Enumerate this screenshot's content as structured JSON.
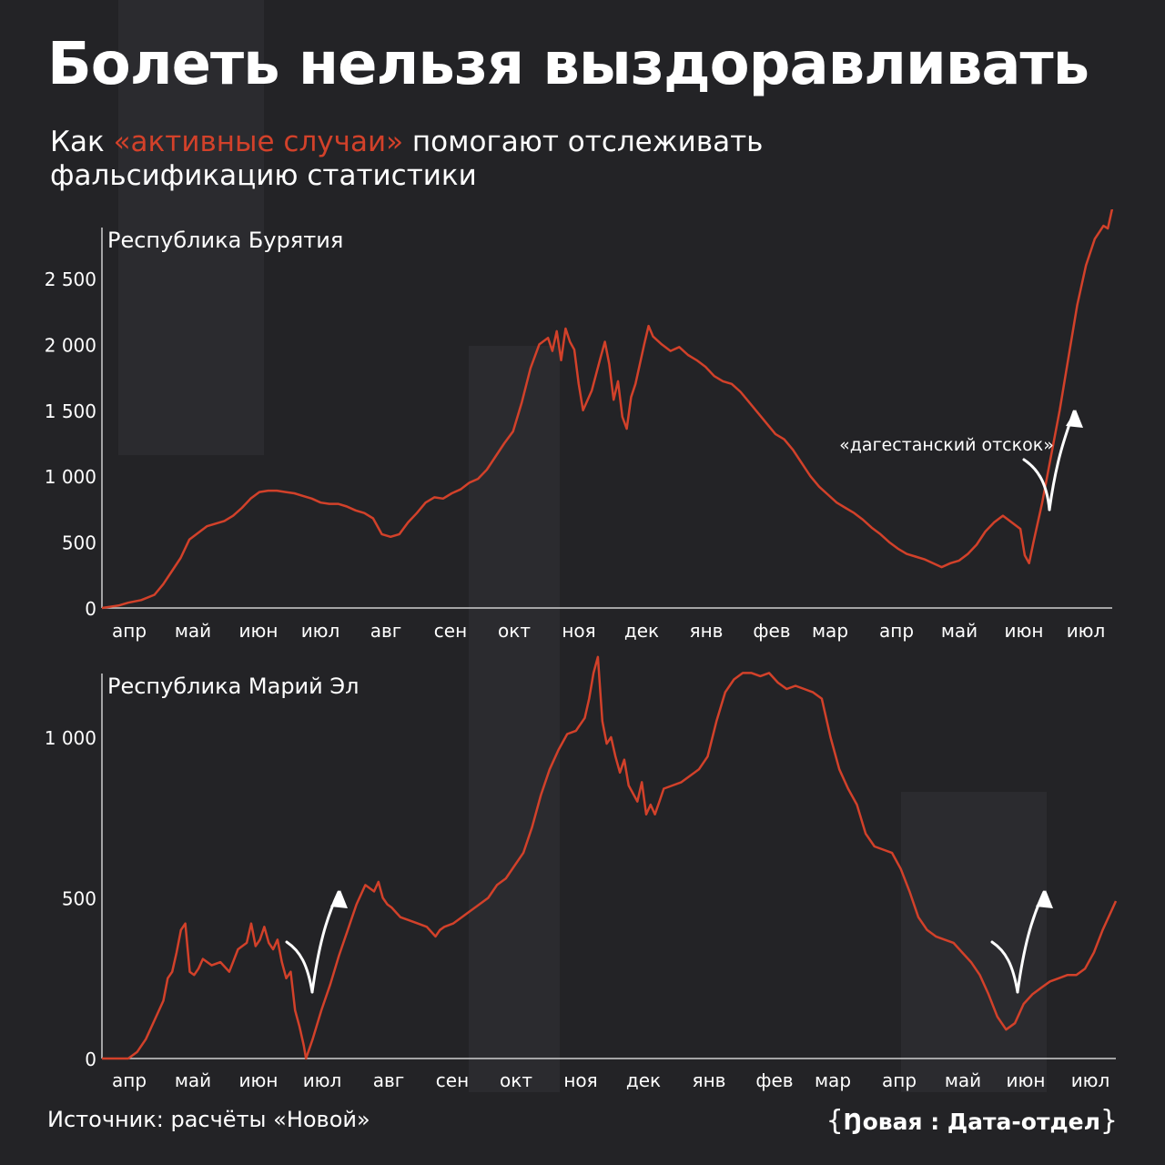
{
  "header": {
    "title": "Болеть нельзя выздоравливать",
    "subtitle_prefix": "Как ",
    "subtitle_highlight": "«активные случаи»",
    "subtitle_suffix": " помогают отслеживать фальсификацию статистики"
  },
  "colors": {
    "background": "#232326",
    "accent": "#d2412a",
    "text": "#ffffff",
    "axis": "#cccccc"
  },
  "chart_data": [
    {
      "type": "line",
      "title": "Республика Бурятия",
      "ylim": [
        0,
        2800
      ],
      "y_ticks": [
        0,
        500,
        1000,
        1500,
        2000,
        2500
      ],
      "y_tick_labels": [
        "0",
        "500",
        "1 000",
        "1 500",
        "2 000",
        "2 500"
      ],
      "month_labels": [
        "апр",
        "май",
        "июн",
        "июл",
        "авг",
        "сен",
        "окт",
        "ноя",
        "дек",
        "янв",
        "фев",
        "мар",
        "апр",
        "май",
        "июн",
        "июл"
      ],
      "annotation": "«дагестанский отскок»",
      "series": [
        {
          "color": "#d2412a",
          "points": [
            [
              0,
              0
            ],
            [
              0.4,
              20
            ],
            [
              0.6,
              40
            ],
            [
              0.9,
              60
            ],
            [
              1.2,
              100
            ],
            [
              1.4,
              180
            ],
            [
              1.6,
              280
            ],
            [
              1.8,
              380
            ],
            [
              2.0,
              520
            ],
            [
              2.2,
              570
            ],
            [
              2.4,
              620
            ],
            [
              2.6,
              640
            ],
            [
              2.8,
              660
            ],
            [
              3.0,
              700
            ],
            [
              3.2,
              760
            ],
            [
              3.4,
              830
            ],
            [
              3.6,
              880
            ],
            [
              3.8,
              890
            ],
            [
              4.0,
              890
            ],
            [
              4.2,
              880
            ],
            [
              4.4,
              870
            ],
            [
              4.6,
              850
            ],
            [
              4.8,
              830
            ],
            [
              5.0,
              800
            ],
            [
              5.2,
              790
            ],
            [
              5.4,
              790
            ],
            [
              5.6,
              770
            ],
            [
              5.8,
              740
            ],
            [
              6.0,
              720
            ],
            [
              6.2,
              680
            ],
            [
              6.4,
              560
            ],
            [
              6.6,
              540
            ],
            [
              6.8,
              560
            ],
            [
              7.0,
              650
            ],
            [
              7.2,
              720
            ],
            [
              7.4,
              800
            ],
            [
              7.6,
              840
            ],
            [
              7.8,
              830
            ],
            [
              8.0,
              870
            ],
            [
              8.2,
              900
            ],
            [
              8.4,
              950
            ],
            [
              8.6,
              980
            ],
            [
              8.8,
              1050
            ],
            [
              9.0,
              1150
            ],
            [
              9.2,
              1250
            ],
            [
              9.4,
              1340
            ],
            [
              9.6,
              1560
            ],
            [
              9.8,
              1820
            ],
            [
              10.0,
              2000
            ],
            [
              10.2,
              2050
            ],
            [
              10.3,
              1950
            ],
            [
              10.4,
              2100
            ],
            [
              10.5,
              1880
            ],
            [
              10.6,
              2120
            ],
            [
              10.7,
              2020
            ],
            [
              10.8,
              1960
            ],
            [
              10.9,
              1700
            ],
            [
              11.0,
              1500
            ],
            [
              11.2,
              1650
            ],
            [
              11.4,
              1900
            ],
            [
              11.5,
              2020
            ],
            [
              11.6,
              1850
            ],
            [
              11.7,
              1580
            ],
            [
              11.8,
              1720
            ],
            [
              11.9,
              1450
            ],
            [
              12.0,
              1360
            ],
            [
              12.1,
              1600
            ],
            [
              12.2,
              1700
            ],
            [
              12.4,
              2000
            ],
            [
              12.5,
              2140
            ],
            [
              12.6,
              2060
            ],
            [
              12.8,
              2000
            ],
            [
              13.0,
              1950
            ],
            [
              13.2,
              1980
            ],
            [
              13.4,
              1920
            ],
            [
              13.6,
              1880
            ],
            [
              13.8,
              1830
            ],
            [
              14.0,
              1760
            ],
            [
              14.2,
              1720
            ],
            [
              14.4,
              1700
            ],
            [
              14.6,
              1640
            ],
            [
              14.8,
              1560
            ],
            [
              15.0,
              1480
            ],
            [
              15.2,
              1400
            ],
            [
              15.4,
              1320
            ],
            [
              15.6,
              1280
            ],
            [
              15.8,
              1200
            ],
            [
              16.0,
              1100
            ],
            [
              16.2,
              1000
            ],
            [
              16.4,
              920
            ],
            [
              16.6,
              860
            ],
            [
              16.8,
              800
            ],
            [
              17.0,
              760
            ],
            [
              17.2,
              720
            ],
            [
              17.4,
              670
            ],
            [
              17.6,
              610
            ],
            [
              17.8,
              560
            ],
            [
              18.0,
              500
            ],
            [
              18.2,
              450
            ],
            [
              18.4,
              410
            ],
            [
              18.6,
              390
            ],
            [
              18.8,
              370
            ],
            [
              19.0,
              340
            ],
            [
              19.2,
              310
            ],
            [
              19.4,
              340
            ],
            [
              19.6,
              360
            ],
            [
              19.8,
              410
            ],
            [
              20.0,
              480
            ],
            [
              20.2,
              580
            ],
            [
              20.4,
              650
            ],
            [
              20.6,
              700
            ],
            [
              20.8,
              650
            ],
            [
              21.0,
              600
            ],
            [
              21.1,
              400
            ],
            [
              21.2,
              340
            ],
            [
              21.3,
              500
            ],
            [
              21.5,
              800
            ],
            [
              21.7,
              1150
            ],
            [
              21.9,
              1500
            ],
            [
              22.1,
              1900
            ],
            [
              22.3,
              2300
            ],
            [
              22.5,
              2600
            ],
            [
              22.7,
              2800
            ],
            [
              22.9,
              2900
            ],
            [
              23.0,
              2880
            ],
            [
              23.1,
              3030
            ]
          ]
        }
      ]
    },
    {
      "type": "line",
      "title": "Республика Марий Эл",
      "ylim": [
        0,
        1220
      ],
      "y_ticks": [
        0,
        500,
        1000
      ],
      "y_tick_labels": [
        "0",
        "500",
        "1 000"
      ],
      "month_labels": [
        "апр",
        "май",
        "июн",
        "июл",
        "авг",
        "сен",
        "окт",
        "ноя",
        "дек",
        "янв",
        "фев",
        "мар",
        "апр",
        "май",
        "июн",
        "июл"
      ],
      "series": [
        {
          "color": "#d2412a",
          "points": [
            [
              0,
              0
            ],
            [
              0.6,
              0
            ],
            [
              0.8,
              20
            ],
            [
              1.0,
              60
            ],
            [
              1.2,
              120
            ],
            [
              1.4,
              180
            ],
            [
              1.5,
              250
            ],
            [
              1.6,
              270
            ],
            [
              1.7,
              330
            ],
            [
              1.8,
              400
            ],
            [
              1.9,
              420
            ],
            [
              2.0,
              270
            ],
            [
              2.1,
              260
            ],
            [
              2.2,
              280
            ],
            [
              2.3,
              310
            ],
            [
              2.5,
              290
            ],
            [
              2.7,
              300
            ],
            [
              2.9,
              270
            ],
            [
              3.1,
              340
            ],
            [
              3.3,
              360
            ],
            [
              3.4,
              420
            ],
            [
              3.5,
              350
            ],
            [
              3.6,
              370
            ],
            [
              3.7,
              410
            ],
            [
              3.8,
              360
            ],
            [
              3.9,
              340
            ],
            [
              4.0,
              370
            ],
            [
              4.1,
              300
            ],
            [
              4.2,
              250
            ],
            [
              4.3,
              270
            ],
            [
              4.4,
              150
            ],
            [
              4.5,
              100
            ],
            [
              4.6,
              40
            ],
            [
              4.65,
              0
            ],
            [
              4.8,
              60
            ],
            [
              5.0,
              150
            ],
            [
              5.2,
              230
            ],
            [
              5.4,
              320
            ],
            [
              5.6,
              400
            ],
            [
              5.8,
              480
            ],
            [
              6.0,
              540
            ],
            [
              6.2,
              520
            ],
            [
              6.3,
              550
            ],
            [
              6.4,
              500
            ],
            [
              6.5,
              480
            ],
            [
              6.6,
              470
            ],
            [
              6.8,
              440
            ],
            [
              7.0,
              430
            ],
            [
              7.2,
              420
            ],
            [
              7.4,
              410
            ],
            [
              7.6,
              380
            ],
            [
              7.7,
              400
            ],
            [
              7.8,
              410
            ],
            [
              8.0,
              420
            ],
            [
              8.2,
              440
            ],
            [
              8.4,
              460
            ],
            [
              8.6,
              480
            ],
            [
              8.8,
              500
            ],
            [
              9.0,
              540
            ],
            [
              9.2,
              560
            ],
            [
              9.4,
              600
            ],
            [
              9.6,
              640
            ],
            [
              9.8,
              720
            ],
            [
              10.0,
              820
            ],
            [
              10.2,
              900
            ],
            [
              10.4,
              960
            ],
            [
              10.6,
              1010
            ],
            [
              10.8,
              1020
            ],
            [
              11.0,
              1060
            ],
            [
              11.1,
              1120
            ],
            [
              11.2,
              1200
            ],
            [
              11.3,
              1250
            ],
            [
              11.4,
              1050
            ],
            [
              11.5,
              980
            ],
            [
              11.6,
              1000
            ],
            [
              11.7,
              940
            ],
            [
              11.8,
              890
            ],
            [
              11.9,
              930
            ],
            [
              12.0,
              850
            ],
            [
              12.2,
              800
            ],
            [
              12.3,
              860
            ],
            [
              12.4,
              760
            ],
            [
              12.5,
              790
            ],
            [
              12.6,
              760
            ],
            [
              12.7,
              800
            ],
            [
              12.8,
              840
            ],
            [
              13.0,
              850
            ],
            [
              13.2,
              860
            ],
            [
              13.4,
              880
            ],
            [
              13.6,
              900
            ],
            [
              13.8,
              940
            ],
            [
              14.0,
              1050
            ],
            [
              14.2,
              1140
            ],
            [
              14.4,
              1180
            ],
            [
              14.6,
              1200
            ],
            [
              14.8,
              1200
            ],
            [
              15.0,
              1190
            ],
            [
              15.2,
              1200
            ],
            [
              15.4,
              1170
            ],
            [
              15.6,
              1150
            ],
            [
              15.8,
              1160
            ],
            [
              16.0,
              1150
            ],
            [
              16.2,
              1140
            ],
            [
              16.4,
              1120
            ],
            [
              16.6,
              1000
            ],
            [
              16.8,
              900
            ],
            [
              17.0,
              840
            ],
            [
              17.2,
              790
            ],
            [
              17.4,
              700
            ],
            [
              17.6,
              660
            ],
            [
              17.8,
              650
            ],
            [
              18.0,
              640
            ],
            [
              18.2,
              590
            ],
            [
              18.4,
              520
            ],
            [
              18.6,
              440
            ],
            [
              18.8,
              400
            ],
            [
              19.0,
              380
            ],
            [
              19.2,
              370
            ],
            [
              19.4,
              360
            ],
            [
              19.6,
              330
            ],
            [
              19.8,
              300
            ],
            [
              20.0,
              260
            ],
            [
              20.2,
              200
            ],
            [
              20.4,
              130
            ],
            [
              20.6,
              90
            ],
            [
              20.8,
              110
            ],
            [
              21.0,
              170
            ],
            [
              21.2,
              200
            ],
            [
              21.4,
              220
            ],
            [
              21.6,
              240
            ],
            [
              21.8,
              250
            ],
            [
              22.0,
              260
            ],
            [
              22.2,
              260
            ],
            [
              22.4,
              280
            ],
            [
              22.6,
              330
            ],
            [
              22.8,
              400
            ],
            [
              23.0,
              460
            ],
            [
              23.1,
              490
            ]
          ]
        }
      ]
    }
  ],
  "footer": {
    "source": "Источник: расчёты «Новой»",
    "brand_open": "{",
    "brand": "Ŋовая : Дата-отдел",
    "brand_close": "}"
  }
}
